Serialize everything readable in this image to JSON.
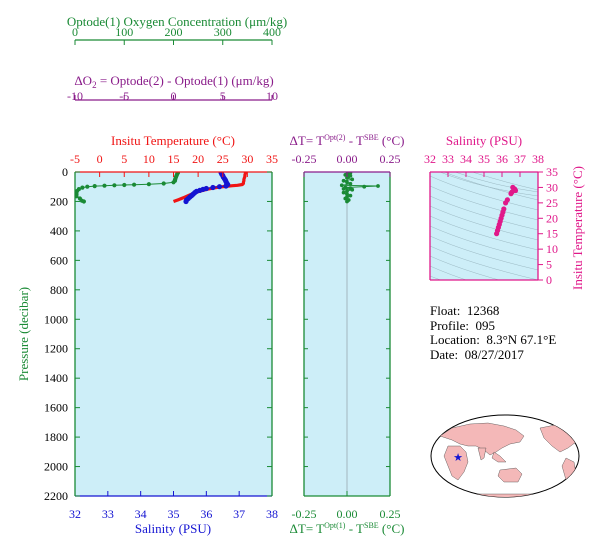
{
  "colors": {
    "green": "#1a8a35",
    "purple": "#8a1c8a",
    "red": "#f01414",
    "blue": "#1414d2",
    "magenta": "#e0188a",
    "panel_fill": "#cdeef8",
    "land": "#f4b8b8",
    "ocean": "#ffffff"
  },
  "chart_data": [
    {
      "id": "main_profile",
      "type": "scatter",
      "ylabel": "Pressure (decibar)",
      "ylim": [
        2200,
        0
      ],
      "yticks": [
        0,
        200,
        400,
        600,
        800,
        1000,
        1200,
        1400,
        1600,
        1800,
        2000,
        2200
      ],
      "axes": {
        "oxygen": {
          "label": "Optode(1) Oxygen Concentration (μm/kg)",
          "range": [
            0,
            400
          ],
          "ticks": [
            0,
            100,
            200,
            300,
            400
          ]
        },
        "delta_o2": {
          "label_parts": [
            "ΔO",
            "2",
            " = Optode(2) - Optode(1)   (μm/kg)"
          ],
          "range": [
            -10,
            10
          ],
          "ticks": [
            -10,
            -5,
            0,
            5,
            10
          ]
        },
        "temperature": {
          "label": "Insitu Temperature (°C)",
          "range": [
            -5,
            35
          ],
          "ticks": [
            -5,
            0,
            5,
            10,
            15,
            20,
            25,
            30,
            35
          ]
        },
        "salinity": {
          "label": "Salinity (PSU)",
          "range": [
            32,
            38
          ],
          "ticks": [
            32,
            33,
            34,
            35,
            36,
            37,
            38
          ]
        }
      },
      "series": [
        {
          "key": "oxygen",
          "axis": "oxygen",
          "style": "dots",
          "points": [
            [
              209,
              2
            ],
            [
              209,
              6
            ],
            [
              208,
              10
            ],
            [
              207,
              18
            ],
            [
              206,
              26
            ],
            [
              205,
              34
            ],
            [
              204,
              44
            ],
            [
              203,
              52
            ],
            [
              203,
              60
            ],
            [
              200,
              70
            ],
            [
              180,
              78
            ],
            [
              150,
              83
            ],
            [
              120,
              86
            ],
            [
              100,
              88
            ],
            [
              80,
              90
            ],
            [
              60,
              93
            ],
            [
              40,
              96
            ],
            [
              25,
              100
            ],
            [
              15,
              106
            ],
            [
              8,
              116
            ],
            [
              4,
              130
            ],
            [
              3,
              150
            ],
            [
              3,
              165
            ],
            [
              10,
              180
            ],
            [
              14,
              195
            ],
            [
              18,
              200
            ]
          ]
        },
        {
          "key": "temperature",
          "axis": "temperature",
          "style": "line",
          "points": [
            [
              29.6,
              2
            ],
            [
              29.6,
              10
            ],
            [
              29.5,
              20
            ],
            [
              29.5,
              30
            ],
            [
              29.4,
              40
            ],
            [
              29.3,
              50
            ],
            [
              29.3,
              60
            ],
            [
              29.2,
              70
            ],
            [
              29.2,
              78
            ],
            [
              29.0,
              85
            ],
            [
              28.0,
              90
            ],
            [
              27.0,
              93
            ],
            [
              26.0,
              96
            ],
            [
              25.0,
              100
            ],
            [
              24.0,
              104
            ],
            [
              23.0,
              110
            ],
            [
              22.0,
              116
            ],
            [
              21.0,
              124
            ],
            [
              20.0,
              134
            ],
            [
              19.0,
              146
            ],
            [
              18.0,
              160
            ],
            [
              17.0,
              175
            ],
            [
              16.0,
              188
            ],
            [
              15.0,
              200
            ]
          ]
        },
        {
          "key": "salinity",
          "axis": "salinity",
          "style": "dots",
          "points": [
            [
              36.45,
              5
            ],
            [
              36.47,
              15
            ],
            [
              36.5,
              25
            ],
            [
              36.52,
              35
            ],
            [
              36.55,
              45
            ],
            [
              36.58,
              55
            ],
            [
              36.6,
              65
            ],
            [
              36.62,
              75
            ],
            [
              36.65,
              85
            ],
            [
              36.6,
              95
            ],
            [
              36.4,
              100
            ],
            [
              36.2,
              105
            ],
            [
              36.0,
              112
            ],
            [
              35.9,
              118
            ],
            [
              35.8,
              125
            ],
            [
              35.7,
              132
            ],
            [
              35.65,
              140
            ],
            [
              35.6,
              150
            ],
            [
              35.55,
              160
            ],
            [
              35.5,
              170
            ],
            [
              35.45,
              180
            ],
            [
              35.4,
              190
            ],
            [
              35.38,
              200
            ]
          ]
        }
      ]
    },
    {
      "id": "delta_t",
      "type": "line",
      "xlabel_top_parts": [
        "ΔT= T",
        "Opt(2)",
        " - T",
        "SBE",
        " (°C)"
      ],
      "xlabel_bottom_parts": [
        "ΔT= T",
        "Opt(1)",
        " - T",
        "SBE",
        " (°C)"
      ],
      "xlim": [
        -0.25,
        0.25
      ],
      "xticks": [
        -0.25,
        0,
        0.25
      ],
      "xtick_labels": [
        "-0.25",
        "0.00",
        "0.25"
      ],
      "ylim": [
        2200,
        0
      ],
      "points": [
        [
          0.02,
          5
        ],
        [
          0.01,
          10
        ],
        [
          0.0,
          15
        ],
        [
          -0.01,
          20
        ],
        [
          0.02,
          25
        ],
        [
          0.01,
          30
        ],
        [
          0.0,
          40
        ],
        [
          0.03,
          50
        ],
        [
          -0.02,
          60
        ],
        [
          0.0,
          70
        ],
        [
          0.02,
          80
        ],
        [
          -0.03,
          90
        ],
        [
          0.18,
          95
        ],
        [
          0.1,
          100
        ],
        [
          -0.01,
          105
        ],
        [
          0.02,
          110
        ],
        [
          -0.02,
          115
        ],
        [
          0.03,
          120
        ],
        [
          0.0,
          130
        ],
        [
          -0.02,
          140
        ],
        [
          0.0,
          150
        ],
        [
          0.02,
          160
        ],
        [
          0.0,
          170
        ],
        [
          -0.01,
          180
        ],
        [
          0.01,
          190
        ],
        [
          0.0,
          200
        ]
      ]
    },
    {
      "id": "ts_diagram",
      "type": "scatter",
      "xlabel": "Salinity (PSU)",
      "ylabel": "Insitu Temperature (°C)",
      "xlim": [
        32,
        38
      ],
      "ylim": [
        0,
        35
      ],
      "xticks": [
        32,
        33,
        34,
        35,
        36,
        37,
        38
      ],
      "yticks": [
        0,
        5,
        10,
        15,
        20,
        25,
        30,
        35
      ],
      "points": [
        [
          36.6,
          30.0
        ],
        [
          36.7,
          29.5
        ],
        [
          36.75,
          29.0
        ],
        [
          36.55,
          28.5
        ],
        [
          36.5,
          28.0
        ],
        [
          36.3,
          26.0
        ],
        [
          36.2,
          25.0
        ],
        [
          36.1,
          23.0
        ],
        [
          36.05,
          22.0
        ],
        [
          36.0,
          21.0
        ],
        [
          35.95,
          20.0
        ],
        [
          35.9,
          19.0
        ],
        [
          35.85,
          18.0
        ],
        [
          35.8,
          17.0
        ],
        [
          35.75,
          16.0
        ],
        [
          35.7,
          15.0
        ]
      ]
    }
  ],
  "info": {
    "float_label": "Float:",
    "float_value": "12368",
    "profile_label": "Profile:",
    "profile_value": "095",
    "location_label": "Location:",
    "location_value": "8.3°N  67.1°E",
    "date_label": "Date:",
    "date_value": "08/27/2017"
  },
  "map": {
    "float_marker": {
      "lat": 8.3,
      "lon": 67.1
    }
  }
}
